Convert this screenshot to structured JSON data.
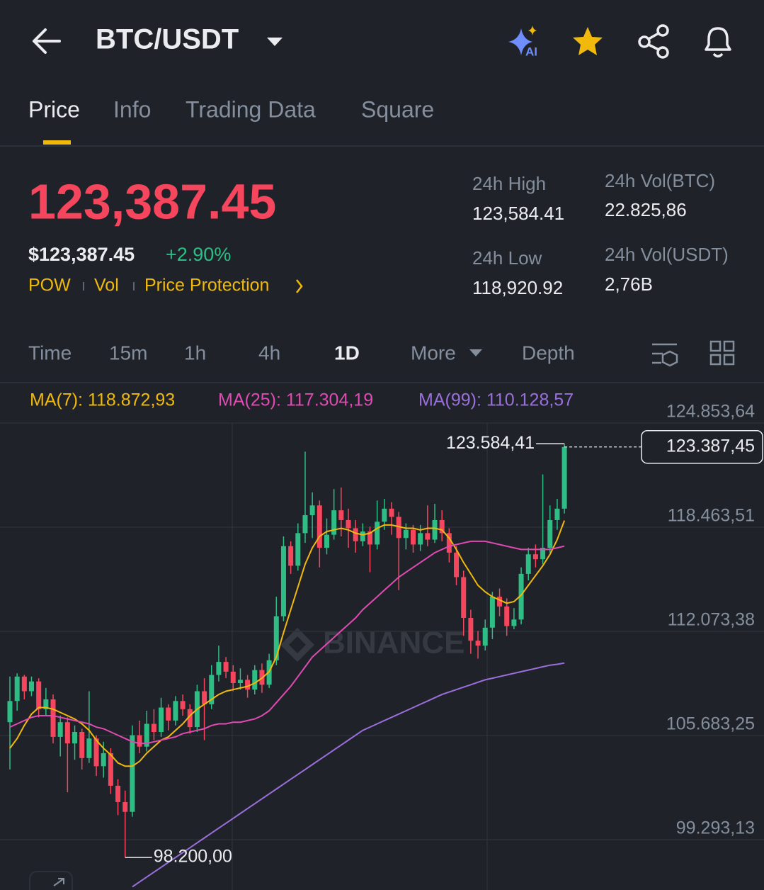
{
  "header": {
    "title": "BTC/USDT"
  },
  "tabs": [
    "Price",
    "Info",
    "Trading Data",
    "Square"
  ],
  "price": {
    "last": "123,387.45",
    "usd": "$123,387.45",
    "change": "+2.90%"
  },
  "tags": [
    "POW",
    "Vol",
    "Price Protection"
  ],
  "stats": [
    {
      "label": "24h High",
      "value": "123,584.41"
    },
    {
      "label": "24h Low",
      "value": "118,920.92"
    },
    {
      "label": "24h Vol(BTC)",
      "value": "22.825,86"
    },
    {
      "label": "24h Vol(USDT)",
      "value": "2,76B"
    }
  ],
  "intervals": [
    "Time",
    "15m",
    "1h",
    "4h",
    "1D",
    "More",
    "Depth"
  ],
  "chart_data": {
    "type": "candlestick",
    "watermark": "BINANCE",
    "up_color": "#2ebd85",
    "down_color": "#f6465d",
    "grid": true,
    "ylim": [
      96206,
      124853.64
    ],
    "yticks": [
      {
        "value": 124853.64,
        "label": "124.853,64"
      },
      {
        "value": 118463.51,
        "label": "118.463,51"
      },
      {
        "value": 112073.38,
        "label": "112.073,38"
      },
      {
        "value": 105683.25,
        "label": "105.683,25"
      },
      {
        "value": 99293.13,
        "label": "99.293,13"
      }
    ],
    "open": [
      106500,
      107800,
      109300,
      108400,
      109000,
      107300,
      107900,
      105600,
      106500,
      105200,
      105900,
      104300,
      105500,
      103800,
      104600,
      102600,
      101600,
      101000,
      105700,
      105000,
      106400,
      105900,
      107400,
      106600,
      107800,
      107300,
      106200,
      108400,
      107600,
      109400,
      110200,
      109600,
      108900,
      109100,
      108500,
      109700,
      108800,
      110300,
      113000,
      117300,
      116100,
      118100,
      119200,
      119800,
      117200,
      118000,
      119500,
      118900,
      118400,
      117600,
      118200,
      117400,
      118800,
      119600,
      119100,
      117800,
      118300,
      117400,
      118100,
      117700,
      118900,
      118100,
      116900,
      115400,
      112900,
      111500,
      111200,
      112300,
      114200,
      113600,
      112400,
      112800,
      115600,
      116800,
      116500,
      117200,
      118900,
      119600
    ],
    "high": [
      109300,
      109500,
      109400,
      109300,
      109200,
      108600,
      108200,
      106900,
      106800,
      106300,
      106100,
      108400,
      105700,
      105300,
      104900,
      103000,
      102300,
      106300,
      106600,
      107200,
      107300,
      108000,
      107600,
      108100,
      108200,
      107600,
      108800,
      109200,
      110000,
      111200,
      110500,
      110000,
      109800,
      109400,
      110000,
      110100,
      110700,
      114200,
      117900,
      117600,
      118700,
      123100,
      120600,
      120100,
      119000,
      120800,
      120900,
      119600,
      118900,
      118700,
      118500,
      120100,
      120200,
      120000,
      119400,
      118700,
      118600,
      118600,
      119800,
      119900,
      119500,
      118400,
      117300,
      115800,
      113400,
      112100,
      112800,
      114500,
      114700,
      114100,
      113500,
      116000,
      117200,
      117400,
      121700,
      119800,
      120200,
      123584.41
    ],
    "low": [
      103600,
      107200,
      107900,
      108100,
      106800,
      106900,
      105200,
      104400,
      102200,
      104200,
      103600,
      104000,
      103200,
      103100,
      102100,
      100800,
      98200,
      100700,
      104600,
      104700,
      105400,
      105600,
      106000,
      106300,
      106900,
      105800,
      105900,
      105400,
      107300,
      109000,
      109200,
      108400,
      108500,
      108000,
      108200,
      108300,
      108600,
      110000,
      112700,
      115600,
      115800,
      117500,
      117800,
      116000,
      116800,
      117700,
      117900,
      117200,
      116900,
      117300,
      115700,
      117100,
      118300,
      118000,
      114600,
      117100,
      116900,
      117000,
      117300,
      117500,
      117600,
      116300,
      114900,
      111800,
      110700,
      110400,
      110900,
      111600,
      113000,
      111800,
      112200,
      112500,
      115200,
      116000,
      116200,
      116900,
      118300,
      119300
    ],
    "close": [
      107800,
      109300,
      108400,
      109000,
      107300,
      107900,
      105600,
      106500,
      105200,
      105900,
      104300,
      105500,
      103800,
      104600,
      102600,
      101600,
      101000,
      105700,
      105000,
      106400,
      105900,
      107400,
      106600,
      107800,
      107300,
      106200,
      108400,
      107600,
      109400,
      110200,
      109600,
      108900,
      109100,
      108500,
      109700,
      108800,
      110300,
      113000,
      117300,
      116100,
      118100,
      119200,
      119800,
      117200,
      118000,
      119500,
      118900,
      118400,
      117600,
      118200,
      117400,
      118800,
      119600,
      119100,
      117800,
      118300,
      117400,
      118100,
      117700,
      118900,
      118100,
      116900,
      115400,
      112900,
      111500,
      111200,
      112300,
      114200,
      113600,
      112400,
      112800,
      115600,
      116800,
      116500,
      117200,
      118900,
      119600,
      123387.45
    ],
    "series": [
      {
        "name": "MA(7): 118.872,93",
        "color": "#f0b90b",
        "values": [
          104900,
          105500,
          106300,
          107000,
          107400,
          107400,
          107300,
          107100,
          106900,
          106700,
          106400,
          106000,
          105400,
          104900,
          104500,
          104000,
          103800,
          103800,
          104100,
          104600,
          105000,
          105400,
          105600,
          106000,
          106400,
          106900,
          107300,
          107600,
          107900,
          108200,
          108400,
          108500,
          108600,
          108700,
          108900,
          109200,
          109600,
          110500,
          112000,
          113400,
          114800,
          116200,
          117200,
          117900,
          118200,
          118300,
          118400,
          118300,
          118100,
          118000,
          118100,
          118400,
          118600,
          118600,
          118500,
          118400,
          118400,
          118300,
          118400,
          118400,
          118300,
          117800,
          117100,
          116300,
          115600,
          114900,
          114500,
          114200,
          114000,
          113800,
          113900,
          114300,
          114900,
          115500,
          116100,
          116800,
          117700,
          118872.93
        ]
      },
      {
        "name": "MA(25): 117.304,19",
        "color": "#e04ab3",
        "values": [
          106200,
          106400,
          106600,
          106800,
          106900,
          106900,
          106900,
          106800,
          106700,
          106600,
          106500,
          106400,
          106200,
          106100,
          105900,
          105700,
          105500,
          105300,
          105200,
          105200,
          105300,
          105400,
          105500,
          105600,
          105800,
          105900,
          106000,
          106100,
          106300,
          106400,
          106400,
          106500,
          106500,
          106600,
          106700,
          106900,
          107200,
          107700,
          108200,
          108700,
          109300,
          109900,
          110500,
          110900,
          111300,
          111700,
          112100,
          112500,
          112900,
          113400,
          113800,
          114200,
          114600,
          115000,
          115400,
          115700,
          116000,
          116300,
          116600,
          116900,
          117100,
          117300,
          117400,
          117500,
          117600,
          117600,
          117600,
          117500,
          117400,
          117300,
          117200,
          117100,
          117100,
          117100,
          117100,
          117100,
          117200,
          117304.19
        ]
      },
      {
        "name": "MA(99): 110.128,57",
        "color": "#9b6fdb",
        "values": [
          null,
          null,
          null,
          null,
          null,
          null,
          null,
          null,
          null,
          null,
          null,
          null,
          null,
          null,
          null,
          null,
          null,
          96400,
          96700,
          97000,
          97300,
          97600,
          97900,
          98200,
          98500,
          98800,
          99100,
          99400,
          99700,
          100000,
          100300,
          100600,
          100900,
          101200,
          101500,
          101800,
          102100,
          102400,
          102700,
          103000,
          103300,
          103600,
          103900,
          104200,
          104500,
          104800,
          105100,
          105400,
          105700,
          106000,
          106200,
          106400,
          106600,
          106800,
          107000,
          107200,
          107400,
          107600,
          107800,
          108000,
          108200,
          108350,
          108500,
          108650,
          108800,
          108950,
          109100,
          109200,
          109300,
          109400,
          109500,
          109600,
          109700,
          109800,
          109900,
          110000,
          110050,
          110128.57
        ]
      }
    ],
    "annotations": {
      "high": {
        "value": 123584.41,
        "label": "123.584,41"
      },
      "low": {
        "value": 98200,
        "label": "98.200,00"
      },
      "last": {
        "value": 123387.45,
        "label": "123.387,45"
      }
    }
  }
}
